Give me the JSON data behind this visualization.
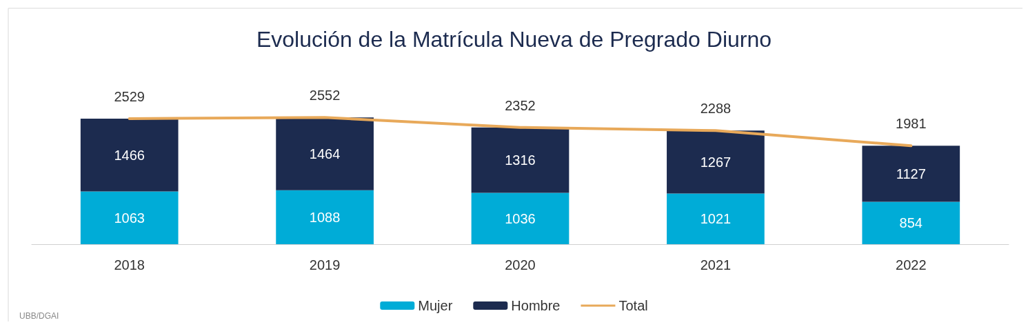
{
  "chart_data": {
    "type": "bar",
    "title": "Evolución de la Matrícula Nueva de Pregrado Diurno",
    "categories": [
      "2018",
      "2019",
      "2020",
      "2021",
      "2022"
    ],
    "stacked": true,
    "data_labels": true,
    "legend": "bottom",
    "grid": false,
    "tick_labels": "x",
    "marker": "none",
    "series": [
      {
        "name": "Mujer",
        "color": "#00acd7",
        "values": [
          1063,
          1088,
          1036,
          1021,
          854
        ]
      },
      {
        "name": "Hombre",
        "color": "#1c2b4f",
        "values": [
          1466,
          1464,
          1316,
          1267,
          1127
        ]
      },
      {
        "name": "Total",
        "type": "line",
        "color": "#e8a95a",
        "values": [
          2529,
          2552,
          2352,
          2288,
          1981
        ]
      }
    ],
    "annotations": [
      "UBB/DGAI"
    ]
  }
}
